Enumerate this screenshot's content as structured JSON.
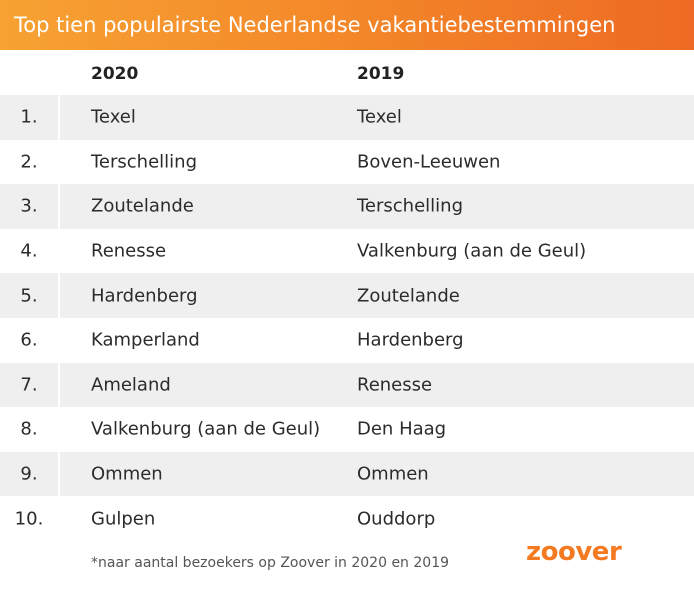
{
  "header": {
    "title": "Top tien populairste Nederlandse vakantiebestemmingen"
  },
  "table": {
    "columns": [
      "2020",
      "2019"
    ],
    "rows": [
      {
        "rank": "1.",
        "y2020": "Texel",
        "y2019": "Texel"
      },
      {
        "rank": "2.",
        "y2020": "Terschelling",
        "y2019": "Boven-Leeuwen"
      },
      {
        "rank": "3.",
        "y2020": "Zoutelande",
        "y2019": "Terschelling"
      },
      {
        "rank": "4.",
        "y2020": "Renesse",
        "y2019": "Valkenburg (aan de Geul)"
      },
      {
        "rank": "5.",
        "y2020": "Hardenberg",
        "y2019": "Zoutelande"
      },
      {
        "rank": "6.",
        "y2020": "Kamperland",
        "y2019": "Hardenberg"
      },
      {
        "rank": "7.",
        "y2020": " Ameland",
        "y2019": "Renesse"
      },
      {
        "rank": "8.",
        "y2020": "Valkenburg (aan de Geul)",
        "y2019": "Den Haag"
      },
      {
        "rank": "9.",
        "y2020": "Ommen",
        "y2019": "Ommen"
      },
      {
        "rank": "10.",
        "y2020": "Gulpen",
        "y2019": "Ouddorp"
      }
    ]
  },
  "footer": {
    "note": "*naar aantal bezoekers op Zoover in 2020 en 2019",
    "logo": "zoover"
  },
  "colors": {
    "accent": "#f47a22",
    "row_shade": "#efefef"
  }
}
